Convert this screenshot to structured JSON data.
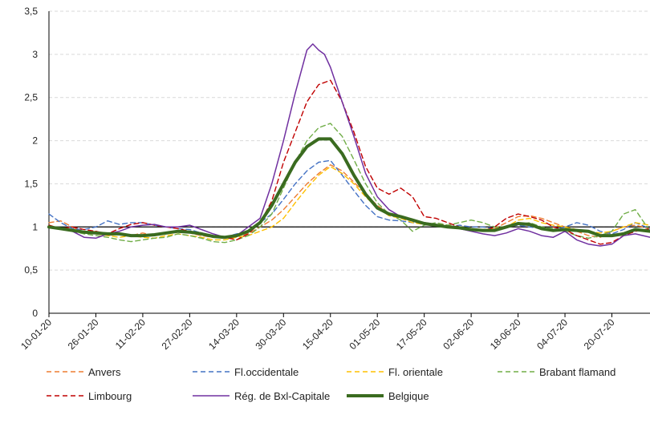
{
  "chart_data": {
    "type": "line",
    "title": "",
    "xlabel": "",
    "ylabel": "",
    "ylim": [
      0,
      3.5
    ],
    "y_ticks": [
      "0",
      "0,5",
      "1",
      "1,5",
      "2",
      "2,5",
      "3",
      "3,5"
    ],
    "y_tick_values": [
      0,
      0.5,
      1,
      1.5,
      2,
      2.5,
      3,
      3.5
    ],
    "x_tick_labels": [
      "10-01-20",
      "26-01-20",
      "11-02-20",
      "27-02-20",
      "14-03-20",
      "30-03-20",
      "15-04-20",
      "01-05-20",
      "17-05-20",
      "02-06-20",
      "18-06-20",
      "04-07-20",
      "20-07-20"
    ],
    "x_tick_days": [
      0,
      16,
      32,
      48,
      64,
      80,
      96,
      112,
      128,
      144,
      160,
      176,
      192
    ],
    "x_range_days": [
      0,
      205
    ],
    "reference_line": 1,
    "grid": true,
    "legend_position": "bottom",
    "series": [
      {
        "name": "Anvers",
        "color": "#ED7D31",
        "dash": "6,4",
        "width": 1.4,
        "x": [
          0,
          4,
          8,
          12,
          16,
          20,
          24,
          28,
          32,
          36,
          40,
          44,
          48,
          52,
          56,
          60,
          64,
          68,
          72,
          76,
          80,
          84,
          88,
          92,
          96,
          100,
          104,
          108,
          112,
          116,
          120,
          124,
          128,
          132,
          136,
          140,
          144,
          148,
          152,
          156,
          160,
          164,
          168,
          172,
          176,
          180,
          184,
          188,
          192,
          196,
          200,
          205
        ],
        "y": [
          1.05,
          1.07,
          1.0,
          0.93,
          0.95,
          0.9,
          0.92,
          0.9,
          0.93,
          0.9,
          0.92,
          0.95,
          0.93,
          0.9,
          0.88,
          0.87,
          0.9,
          0.92,
          1.0,
          1.08,
          1.2,
          1.35,
          1.5,
          1.62,
          1.72,
          1.65,
          1.52,
          1.38,
          1.25,
          1.15,
          1.12,
          1.08,
          1.05,
          1.03,
          1.02,
          1.0,
          0.98,
          0.97,
          0.98,
          1.05,
          1.12,
          1.13,
          1.1,
          1.05,
          1.0,
          0.95,
          0.9,
          0.88,
          0.95,
          1.0,
          1.02,
          0.98
        ]
      },
      {
        "name": "Fl.occidentale",
        "color": "#4472C4",
        "dash": "6,4",
        "width": 1.4,
        "x": [
          0,
          4,
          8,
          12,
          16,
          20,
          24,
          28,
          32,
          36,
          40,
          44,
          48,
          52,
          56,
          60,
          64,
          68,
          72,
          76,
          80,
          84,
          88,
          92,
          96,
          100,
          104,
          108,
          112,
          116,
          120,
          124,
          128,
          132,
          136,
          140,
          144,
          148,
          152,
          156,
          160,
          164,
          168,
          172,
          176,
          180,
          184,
          188,
          192,
          196,
          200,
          205
        ],
        "y": [
          1.15,
          1.05,
          0.98,
          0.97,
          1.0,
          1.07,
          1.03,
          1.05,
          1.05,
          1.02,
          1.0,
          0.98,
          0.97,
          0.93,
          0.9,
          0.88,
          0.92,
          0.95,
          1.05,
          1.15,
          1.32,
          1.5,
          1.65,
          1.75,
          1.77,
          1.6,
          1.42,
          1.25,
          1.12,
          1.08,
          1.07,
          1.05,
          1.04,
          1.02,
          1.0,
          1.02,
          1.0,
          1.0,
          0.98,
          1.0,
          1.02,
          1.0,
          0.98,
          0.97,
          1.0,
          1.05,
          1.02,
          0.95,
          0.92,
          0.97,
          1.05,
          0.98
        ]
      },
      {
        "name": "Fl. orientale",
        "color": "#FFC000",
        "dash": "6,4",
        "width": 1.4,
        "x": [
          0,
          4,
          8,
          12,
          16,
          20,
          24,
          28,
          32,
          36,
          40,
          44,
          48,
          52,
          56,
          60,
          64,
          68,
          72,
          76,
          80,
          84,
          88,
          92,
          96,
          100,
          104,
          108,
          112,
          116,
          120,
          124,
          128,
          132,
          136,
          140,
          144,
          148,
          152,
          156,
          160,
          164,
          168,
          172,
          176,
          180,
          184,
          188,
          192,
          196,
          200,
          205
        ],
        "y": [
          1.0,
          0.98,
          0.95,
          0.93,
          0.92,
          0.9,
          0.88,
          0.9,
          0.88,
          0.87,
          0.9,
          0.92,
          0.9,
          0.88,
          0.85,
          0.85,
          0.88,
          0.9,
          0.95,
          1.0,
          1.1,
          1.28,
          1.45,
          1.6,
          1.7,
          1.62,
          1.5,
          1.35,
          1.22,
          1.13,
          1.1,
          1.05,
          1.03,
          1.02,
          1.0,
          1.0,
          0.98,
          0.97,
          0.98,
          1.0,
          1.08,
          1.1,
          1.05,
          1.02,
          1.0,
          0.97,
          0.95,
          0.93,
          0.95,
          1.0,
          1.05,
          1.02
        ]
      },
      {
        "name": "Brabant flamand",
        "color": "#70AD47",
        "dash": "6,4",
        "width": 1.4,
        "x": [
          0,
          4,
          8,
          12,
          16,
          20,
          24,
          28,
          32,
          36,
          40,
          44,
          48,
          52,
          56,
          60,
          64,
          68,
          72,
          76,
          80,
          84,
          88,
          92,
          96,
          100,
          104,
          108,
          112,
          116,
          120,
          124,
          128,
          132,
          136,
          140,
          144,
          148,
          152,
          156,
          160,
          164,
          168,
          172,
          176,
          180,
          184,
          188,
          192,
          196,
          200,
          205
        ],
        "y": [
          1.02,
          0.98,
          0.95,
          0.92,
          0.9,
          0.88,
          0.85,
          0.83,
          0.85,
          0.87,
          0.88,
          0.92,
          0.9,
          0.87,
          0.83,
          0.82,
          0.85,
          0.9,
          1.0,
          1.15,
          1.45,
          1.75,
          2.0,
          2.15,
          2.2,
          2.05,
          1.78,
          1.5,
          1.28,
          1.15,
          1.08,
          0.95,
          1.02,
          1.05,
          1.02,
          1.05,
          1.08,
          1.05,
          1.0,
          1.0,
          1.03,
          1.05,
          1.0,
          0.98,
          0.95,
          0.9,
          0.87,
          0.9,
          0.95,
          1.15,
          1.2,
          0.95
        ]
      },
      {
        "name": "Limbourg",
        "color": "#C00000",
        "dash": "6,4",
        "width": 1.4,
        "x": [
          0,
          4,
          8,
          12,
          16,
          20,
          24,
          28,
          32,
          36,
          40,
          44,
          48,
          52,
          56,
          60,
          64,
          68,
          72,
          76,
          80,
          84,
          88,
          92,
          96,
          100,
          104,
          108,
          112,
          116,
          120,
          124,
          128,
          132,
          136,
          140,
          144,
          148,
          152,
          156,
          160,
          164,
          168,
          172,
          176,
          180,
          184,
          188,
          192,
          196,
          200,
          205
        ],
        "y": [
          1.02,
          0.98,
          1.0,
          0.97,
          0.95,
          0.92,
          0.98,
          1.03,
          1.05,
          1.02,
          1.0,
          0.98,
          0.95,
          0.93,
          0.9,
          0.88,
          0.85,
          0.92,
          1.05,
          1.3,
          1.75,
          2.1,
          2.45,
          2.65,
          2.7,
          2.45,
          2.1,
          1.7,
          1.45,
          1.38,
          1.45,
          1.35,
          1.12,
          1.1,
          1.05,
          1.0,
          0.97,
          0.95,
          1.0,
          1.1,
          1.15,
          1.12,
          1.08,
          1.0,
          0.97,
          0.9,
          0.85,
          0.8,
          0.82,
          0.9,
          0.95,
          0.98
        ]
      },
      {
        "name": "Rég. de Bxl-Capitale",
        "color": "#7030A0",
        "dash": "",
        "width": 1.5,
        "x": [
          0,
          4,
          8,
          12,
          16,
          20,
          24,
          28,
          32,
          36,
          40,
          44,
          48,
          52,
          56,
          60,
          64,
          68,
          72,
          76,
          80,
          84,
          88,
          90,
          92,
          94,
          96,
          100,
          104,
          108,
          112,
          116,
          120,
          124,
          128,
          132,
          136,
          140,
          144,
          148,
          152,
          156,
          160,
          164,
          168,
          172,
          176,
          180,
          184,
          188,
          192,
          196,
          200,
          205
        ],
        "y": [
          1.0,
          0.98,
          0.95,
          0.88,
          0.87,
          0.92,
          0.95,
          1.0,
          1.02,
          1.03,
          1.0,
          1.0,
          1.02,
          0.97,
          0.92,
          0.88,
          0.9,
          1.0,
          1.1,
          1.5,
          2.0,
          2.55,
          3.05,
          3.12,
          3.05,
          3.0,
          2.85,
          2.45,
          2.05,
          1.62,
          1.35,
          1.2,
          1.12,
          1.08,
          1.05,
          1.03,
          1.0,
          0.98,
          0.95,
          0.92,
          0.9,
          0.93,
          0.98,
          0.95,
          0.9,
          0.88,
          0.95,
          0.85,
          0.8,
          0.78,
          0.8,
          0.9,
          0.92,
          0.88
        ]
      },
      {
        "name": "Belgique",
        "color": "#3A6B20",
        "dash": "",
        "width": 4,
        "x": [
          0,
          4,
          8,
          12,
          16,
          20,
          24,
          28,
          32,
          36,
          40,
          44,
          48,
          52,
          56,
          60,
          64,
          68,
          72,
          76,
          80,
          84,
          88,
          92,
          96,
          100,
          104,
          108,
          112,
          116,
          120,
          124,
          128,
          132,
          136,
          140,
          144,
          148,
          152,
          156,
          160,
          164,
          168,
          172,
          176,
          180,
          184,
          188,
          192,
          196,
          200,
          205
        ],
        "y": [
          1.0,
          0.98,
          0.96,
          0.94,
          0.93,
          0.92,
          0.92,
          0.9,
          0.9,
          0.91,
          0.93,
          0.95,
          0.94,
          0.92,
          0.89,
          0.88,
          0.9,
          0.95,
          1.05,
          1.25,
          1.5,
          1.75,
          1.93,
          2.02,
          2.02,
          1.85,
          1.6,
          1.38,
          1.22,
          1.15,
          1.12,
          1.08,
          1.04,
          1.02,
          1.0,
          0.99,
          0.97,
          0.96,
          0.96,
          1.0,
          1.04,
          1.03,
          0.98,
          0.96,
          0.97,
          0.96,
          0.95,
          0.9,
          0.9,
          0.92,
          0.97,
          0.95
        ]
      }
    ]
  }
}
